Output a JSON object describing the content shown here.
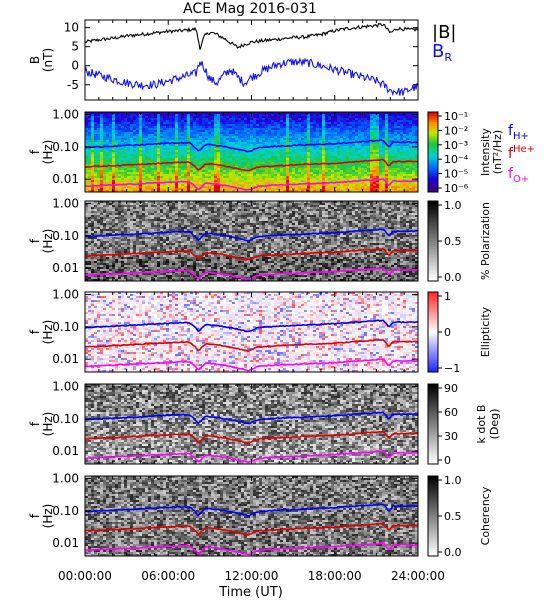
{
  "title": "ACE Mag 2016-031",
  "colors": {
    "total_b": "#000000",
    "b_r": "#1010ff",
    "f_h": "#0000ff",
    "f_he": "#e00000",
    "f_o": "#ff00ff",
    "frame": "#000000"
  },
  "x_axis": {
    "tick_labels": [
      "00:00:00",
      "06:00:00",
      "12:00:00",
      "18:00:00",
      "24:00:00"
    ],
    "tick_hours": [
      0,
      6,
      12,
      18,
      24
    ],
    "label": "Time (UT)",
    "range_hours": [
      0,
      24
    ]
  },
  "chart_data": [
    {
      "type": "line",
      "ylabel_lines": [
        "B",
        "(nT)"
      ],
      "ylim": [
        -9,
        12
      ],
      "y_ticks": [
        10,
        5,
        0,
        -5
      ],
      "legend": [
        "|B|",
        "B_R"
      ],
      "x_hours": [
        0,
        1,
        2,
        3,
        4,
        5,
        6,
        7,
        7.5,
        8,
        8.3,
        8.6,
        9,
        9.5,
        10,
        10.5,
        11,
        11.5,
        12,
        13,
        14,
        15,
        16,
        17,
        18,
        19,
        20,
        21,
        21.5,
        22,
        22.5,
        23,
        23.5,
        24
      ],
      "series": [
        {
          "name": "|B|",
          "color_key": "total_b",
          "values": [
            6.2,
            6.8,
            7.2,
            7.8,
            8.2,
            8.6,
            9.0,
            9.2,
            9.4,
            9.6,
            4.5,
            7.8,
            8.8,
            8.2,
            7.2,
            6.0,
            4.8,
            5.6,
            6.2,
            6.6,
            7.0,
            7.4,
            7.6,
            8.2,
            9.2,
            9.8,
            10.2,
            10.6,
            10.8,
            8.6,
            9.8,
            9.6,
            9.4,
            9.6
          ]
        },
        {
          "name": "B_R",
          "color_key": "b_r",
          "values": [
            -1.5,
            -2.5,
            -3.5,
            -4.5,
            -5.0,
            -5.0,
            -4.0,
            -3.0,
            -2.5,
            -2.0,
            1.2,
            -0.5,
            -3.5,
            -4.5,
            -2.5,
            -1.0,
            -3.0,
            -4.5,
            -3.0,
            -1.0,
            0.5,
            1.0,
            0.8,
            0.0,
            -1.0,
            -2.0,
            -3.0,
            -4.0,
            -5.0,
            -6.5,
            -6.8,
            -7.0,
            -6.0,
            -5.5
          ]
        }
      ]
    },
    {
      "type": "heatmap",
      "ylabel_lines": [
        "f",
        "(Hz)"
      ],
      "scale": "log",
      "ylim_hz": [
        0.004,
        1.2
      ],
      "y_tick_labels": [
        "1.00",
        "0.10",
        "0.01"
      ],
      "y_tick_values": [
        1.0,
        0.1,
        0.01
      ],
      "colorbar_label_lines": [
        "Intensity",
        "(nT²/Hz)"
      ],
      "colorbar_ticks": [
        "10⁻¹",
        "10⁻²",
        "10⁻³",
        "10⁻⁴",
        "10⁻⁵",
        "10⁻⁶"
      ],
      "colormap": "rainbow",
      "legend": [
        "f_H+",
        "f_He+",
        "f_O+"
      ]
    },
    {
      "type": "heatmap",
      "ylabel_lines": [
        "f",
        "(Hz)"
      ],
      "y_tick_labels": [
        "1.00",
        "0.10",
        "0.01"
      ],
      "colorbar_label_lines": [
        "% Polarization"
      ],
      "colorbar_ticks": [
        "1.0",
        "0.5",
        "0.0"
      ],
      "colormap": "gray"
    },
    {
      "type": "heatmap",
      "ylabel_lines": [
        "f",
        "(Hz)"
      ],
      "y_tick_labels": [
        "1.00",
        "0.10",
        "0.01"
      ],
      "colorbar_label_lines": [
        "Ellipticity"
      ],
      "colorbar_ticks": [
        "1",
        "0",
        "−1"
      ],
      "colormap": "bwr"
    },
    {
      "type": "heatmap",
      "ylabel_lines": [
        "f",
        "(Hz)"
      ],
      "y_tick_labels": [
        "1.00",
        "0.10",
        "0.01"
      ],
      "colorbar_label_lines": [
        "k dot B",
        "(Deg)"
      ],
      "colorbar_ticks": [
        "90",
        "60",
        "30",
        "0"
      ],
      "colormap": "gray"
    },
    {
      "type": "heatmap",
      "ylabel_lines": [
        "f",
        "(Hz)"
      ],
      "y_tick_labels": [
        "1.00",
        "0.10",
        "0.01"
      ],
      "colorbar_label_lines": [
        "Coherency"
      ],
      "colorbar_ticks": [
        "1.0",
        "0.5",
        "0.0"
      ],
      "colormap": "gray"
    }
  ],
  "gyrofrequency_overlays": {
    "x_hours": [
      0,
      2,
      4,
      6,
      7.5,
      8.2,
      8.7,
      9.5,
      11,
      11.8,
      12.5,
      14,
      16,
      18,
      20,
      21.5,
      21.9,
      22.2,
      23,
      24
    ],
    "f_H+": [
      0.095,
      0.105,
      0.115,
      0.13,
      0.135,
      0.07,
      0.12,
      0.11,
      0.085,
      0.07,
      0.095,
      0.105,
      0.115,
      0.125,
      0.145,
      0.16,
      0.095,
      0.14,
      0.14,
      0.14
    ],
    "f_He+": [
      0.024,
      0.026,
      0.029,
      0.032,
      0.034,
      0.018,
      0.03,
      0.028,
      0.021,
      0.018,
      0.024,
      0.026,
      0.029,
      0.031,
      0.036,
      0.04,
      0.024,
      0.035,
      0.035,
      0.035
    ],
    "f_O+": [
      0.006,
      0.0066,
      0.0072,
      0.008,
      0.0084,
      0.0045,
      0.0075,
      0.007,
      0.0053,
      0.0045,
      0.006,
      0.0066,
      0.0072,
      0.0078,
      0.009,
      0.01,
      0.006,
      0.0088,
      0.0088,
      0.0088
    ]
  }
}
